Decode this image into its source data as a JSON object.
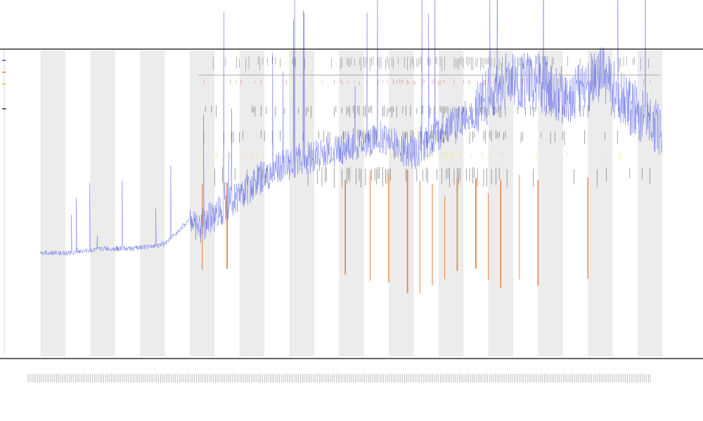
{
  "chart_data": {
    "type": "line",
    "title": "",
    "subtitle_1": "",
    "subtitle_2": "",
    "xlabel": "",
    "ylabel": "",
    "x_tick_count": 330,
    "y_axis_range": [
      0,
      100
    ],
    "legend_placement": "top-left",
    "legend": [
      {
        "name": "",
        "color": "#4444dd"
      },
      {
        "name": "",
        "color": "#e08030"
      },
      {
        "name": "",
        "color": "#e0d020"
      },
      {
        "name": "",
        "color": "#333333"
      }
    ],
    "annotation_labels": [],
    "colors": {
      "main_series": "#4a56e8",
      "band": "#ececec",
      "orange_spikes": "#e8742a",
      "red_marks": "#e04040",
      "yellow_marks": "#e5d84a",
      "black_marks": "#222222",
      "axis": "#333333",
      "bracket": "#aaaaaa"
    },
    "series": [
      {
        "name": "",
        "x": [
          0,
          5,
          10,
          15,
          20,
          24,
          25,
          30,
          35,
          40,
          45,
          50,
          55,
          60,
          65,
          70,
          75,
          80,
          85,
          90,
          95,
          100
        ],
        "values": [
          8,
          8,
          8.5,
          8.5,
          9,
          12,
          10,
          13,
          16,
          18,
          19,
          20,
          21,
          19,
          22,
          24,
          27,
          27,
          25,
          28,
          24,
          21
        ]
      }
    ],
    "annotation_region_x": [
      26,
      98
    ],
    "orange_spike_x": [
      26,
      30,
      49,
      53,
      56,
      59,
      61,
      63,
      65,
      67,
      70,
      72,
      74,
      77,
      80,
      88
    ],
    "band_period_x": 8,
    "band_start_x": 0,
    "x_range": [
      -2,
      102
    ]
  }
}
